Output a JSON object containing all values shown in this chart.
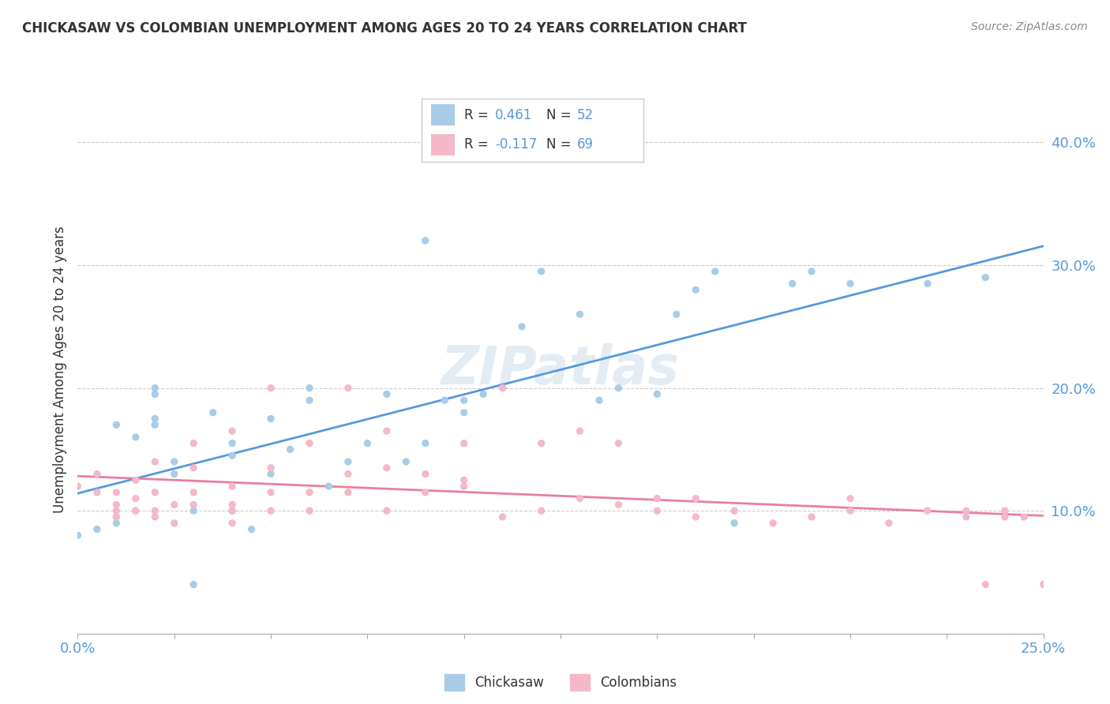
{
  "title": "CHICKASAW VS COLOMBIAN UNEMPLOYMENT AMONG AGES 20 TO 24 YEARS CORRELATION CHART",
  "source": "Source: ZipAtlas.com",
  "ylabel": "Unemployment Among Ages 20 to 24 years",
  "xlim": [
    0.0,
    0.25
  ],
  "ylim": [
    0.0,
    0.43
  ],
  "ytick_labels": [
    "10.0%",
    "20.0%",
    "30.0%",
    "40.0%"
  ],
  "yticks": [
    0.1,
    0.2,
    0.3,
    0.4
  ],
  "background_color": "#ffffff",
  "grid_color": "#cccccc",
  "chickasaw_color": "#a8cce8",
  "colombian_color": "#f4b8c8",
  "chickasaw_line_color": "#5599dd",
  "colombian_line_color": "#e8809a",
  "R_chickasaw": 0.461,
  "N_chickasaw": 52,
  "R_colombian": -0.117,
  "N_colombian": 69,
  "label_color": "#5599dd",
  "text_color": "#333333",
  "source_color": "#888888",
  "chickasaw_x": [
    0.0,
    0.005,
    0.01,
    0.01,
    0.01,
    0.015,
    0.015,
    0.02,
    0.02,
    0.02,
    0.02,
    0.025,
    0.025,
    0.03,
    0.03,
    0.035,
    0.04,
    0.04,
    0.04,
    0.045,
    0.05,
    0.05,
    0.055,
    0.06,
    0.06,
    0.065,
    0.07,
    0.075,
    0.08,
    0.085,
    0.09,
    0.09,
    0.095,
    0.1,
    0.1,
    0.105,
    0.11,
    0.115,
    0.12,
    0.13,
    0.135,
    0.14,
    0.15,
    0.155,
    0.16,
    0.165,
    0.17,
    0.185,
    0.19,
    0.2,
    0.22,
    0.235
  ],
  "chickasaw_y": [
    0.08,
    0.085,
    0.09,
    0.095,
    0.17,
    0.1,
    0.16,
    0.17,
    0.175,
    0.195,
    0.2,
    0.13,
    0.14,
    0.04,
    0.1,
    0.18,
    0.1,
    0.145,
    0.155,
    0.085,
    0.13,
    0.175,
    0.15,
    0.19,
    0.2,
    0.12,
    0.14,
    0.155,
    0.195,
    0.14,
    0.32,
    0.155,
    0.19,
    0.18,
    0.19,
    0.195,
    0.2,
    0.25,
    0.295,
    0.26,
    0.19,
    0.2,
    0.195,
    0.26,
    0.28,
    0.295,
    0.09,
    0.285,
    0.295,
    0.285,
    0.285,
    0.29
  ],
  "colombian_x": [
    0.0,
    0.005,
    0.005,
    0.01,
    0.01,
    0.01,
    0.01,
    0.015,
    0.015,
    0.015,
    0.02,
    0.02,
    0.02,
    0.02,
    0.025,
    0.025,
    0.03,
    0.03,
    0.03,
    0.03,
    0.04,
    0.04,
    0.04,
    0.04,
    0.04,
    0.05,
    0.05,
    0.05,
    0.05,
    0.06,
    0.06,
    0.06,
    0.07,
    0.07,
    0.07,
    0.08,
    0.08,
    0.08,
    0.09,
    0.09,
    0.1,
    0.1,
    0.1,
    0.11,
    0.11,
    0.12,
    0.12,
    0.13,
    0.13,
    0.14,
    0.14,
    0.15,
    0.15,
    0.16,
    0.16,
    0.17,
    0.18,
    0.19,
    0.2,
    0.2,
    0.21,
    0.22,
    0.23,
    0.23,
    0.235,
    0.24,
    0.24,
    0.245,
    0.25
  ],
  "colombian_y": [
    0.12,
    0.115,
    0.13,
    0.095,
    0.1,
    0.105,
    0.115,
    0.1,
    0.11,
    0.125,
    0.095,
    0.1,
    0.115,
    0.14,
    0.09,
    0.105,
    0.105,
    0.115,
    0.135,
    0.155,
    0.09,
    0.1,
    0.105,
    0.12,
    0.165,
    0.1,
    0.115,
    0.135,
    0.2,
    0.1,
    0.115,
    0.155,
    0.115,
    0.13,
    0.2,
    0.1,
    0.135,
    0.165,
    0.115,
    0.13,
    0.12,
    0.125,
    0.155,
    0.095,
    0.2,
    0.1,
    0.155,
    0.11,
    0.165,
    0.105,
    0.155,
    0.1,
    0.11,
    0.095,
    0.11,
    0.1,
    0.09,
    0.095,
    0.1,
    0.11,
    0.09,
    0.1,
    0.095,
    0.1,
    0.04,
    0.095,
    0.1,
    0.095,
    0.04
  ]
}
